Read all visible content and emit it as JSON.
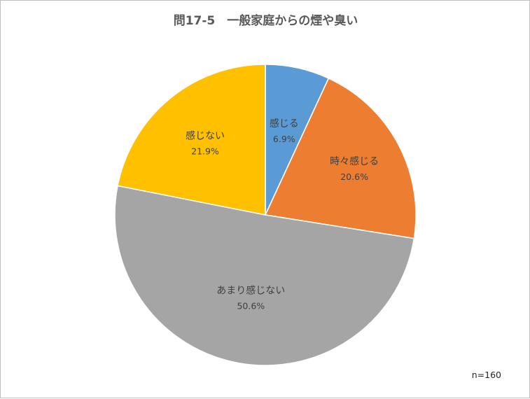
{
  "chart_data": {
    "type": "pie",
    "title": "問17-5　一般家庭からの煙や臭い",
    "categories": [
      "感じる",
      "時々感じる",
      "あまり感じない",
      "感じない"
    ],
    "values": [
      6.9,
      20.6,
      50.6,
      21.9
    ],
    "value_labels": [
      "6.9%",
      "20.6%",
      "50.6%",
      "21.9%"
    ],
    "colors": [
      "#5B9BD5",
      "#ED7D31",
      "#A5A5A5",
      "#FFC000"
    ],
    "start": "12 o'clock",
    "direction": "clockwise",
    "note": "n=160"
  }
}
